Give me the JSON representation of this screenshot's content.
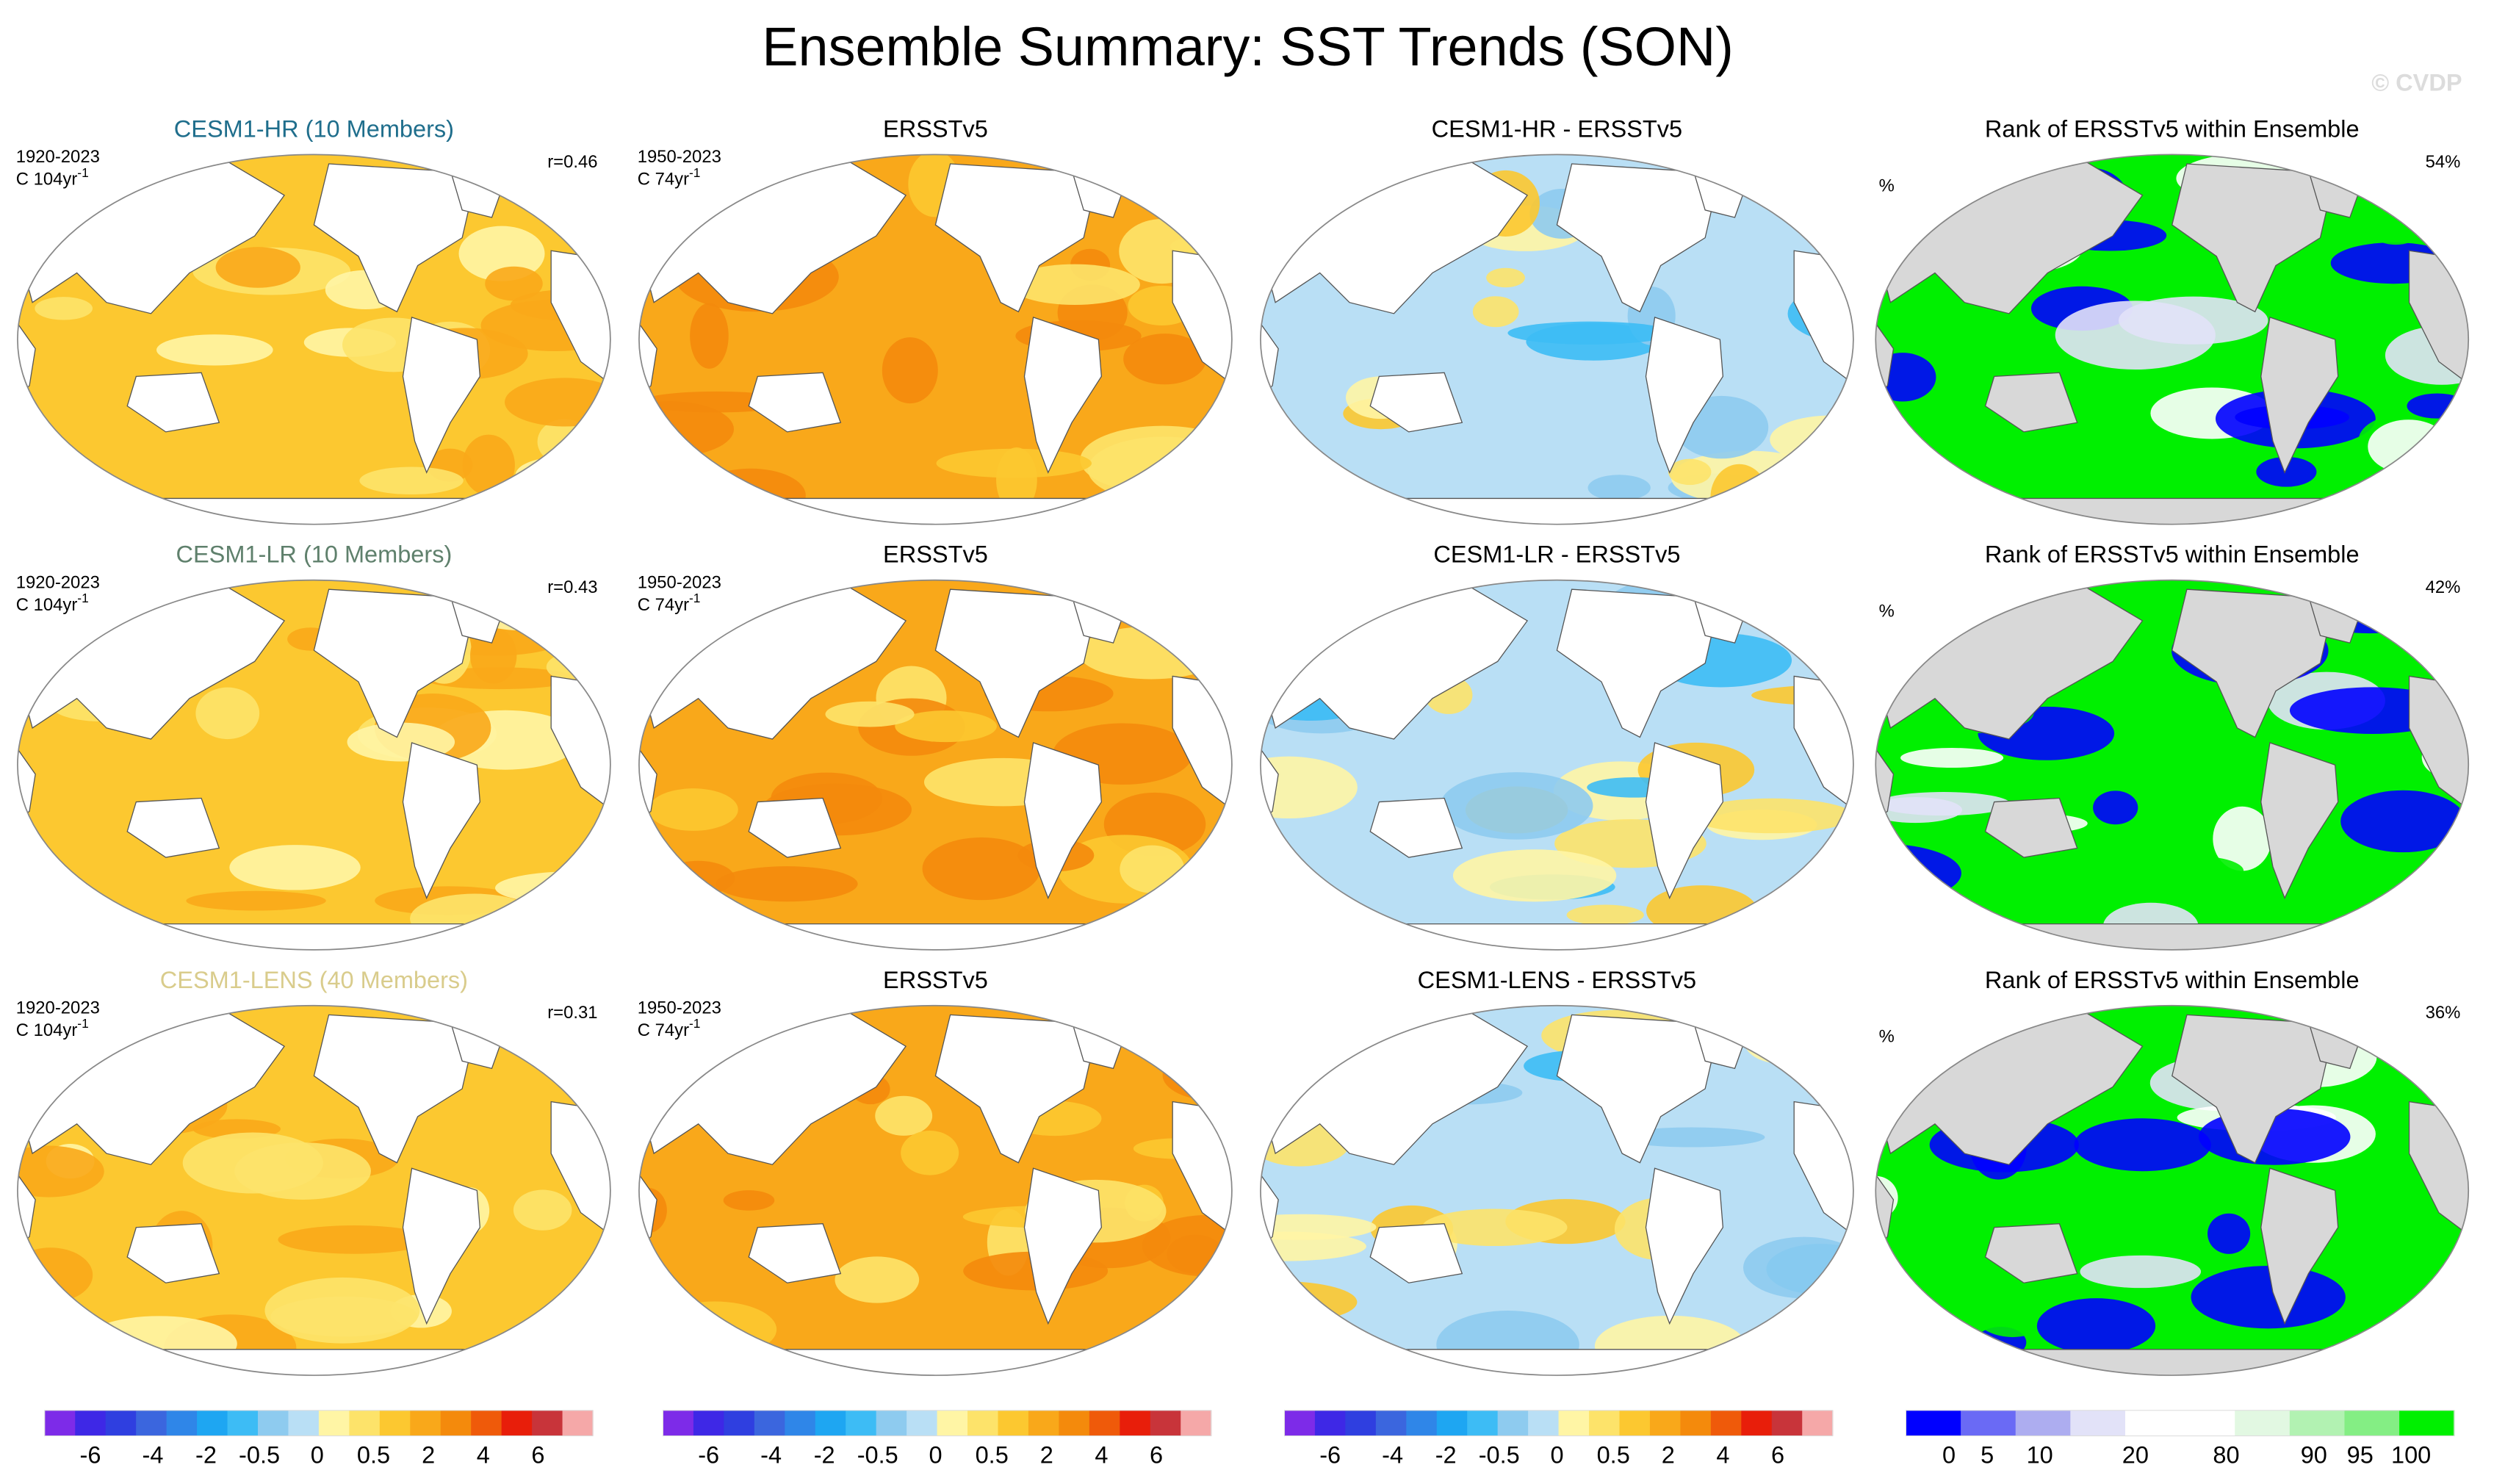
{
  "title": "Ensemble Summary: SST Trends (SON)",
  "watermark": "© CVDP",
  "rows": [
    {
      "model": {
        "title": "CESM1-HR (10 Members)",
        "title_color": "#1f6e8c",
        "period": "1920-2023",
        "units": "C 104yr",
        "units_sup": "-1",
        "corr": "r=0.46"
      },
      "obs": {
        "title": "ERSSTv5",
        "period": "1950-2023",
        "units": "C 74yr",
        "units_sup": "-1"
      },
      "diff": {
        "title": "CESM1-HR - ERSSTv5"
      },
      "rank": {
        "title": "Rank of ERSSTv5 within Ensemble",
        "unit": "%",
        "pct": "54%"
      }
    },
    {
      "model": {
        "title": "CESM1-LR (10 Members)",
        "title_color": "#5f806c",
        "period": "1920-2023",
        "units": "C 104yr",
        "units_sup": "-1",
        "corr": "r=0.43"
      },
      "obs": {
        "title": "ERSSTv5",
        "period": "1950-2023",
        "units": "C 74yr",
        "units_sup": "-1"
      },
      "diff": {
        "title": "CESM1-LR - ERSSTv5"
      },
      "rank": {
        "title": "Rank of ERSSTv5 within Ensemble",
        "unit": "%",
        "pct": "42%"
      }
    },
    {
      "model": {
        "title": "CESM1-LENS (40 Members)",
        "title_color": "#d9cc8c",
        "period": "1920-2023",
        "units": "C 104yr",
        "units_sup": "-1",
        "corr": "r=0.31"
      },
      "obs": {
        "title": "ERSSTv5",
        "period": "1950-2023",
        "units": "C 74yr",
        "units_sup": "-1"
      },
      "diff": {
        "title": "CESM1-LENS - ERSSTv5"
      },
      "rank": {
        "title": "Rank of ERSSTv5 within Ensemble",
        "unit": "%",
        "pct": "36%"
      }
    }
  ],
  "colorbars": {
    "trend": {
      "colors": [
        "#7d2be8",
        "#3e28e6",
        "#2f3fe0",
        "#3b66de",
        "#2f86e8",
        "#1ea6f2",
        "#3dbcf5",
        "#8ecbef",
        "#b9dff5",
        "#fff5a5",
        "#fde36a",
        "#fcc830",
        "#f9a81a",
        "#f48a0c",
        "#ef5a0a",
        "#e81e0a",
        "#c8343a",
        "#f5a8a8"
      ],
      "labels": [
        "-6",
        "-4",
        "-2",
        "-0.5",
        "0",
        "0.5",
        "2",
        "4",
        "6"
      ]
    },
    "rank": {
      "colors": [
        "#0000ff",
        "#6a6af5",
        "#adadf0",
        "#e2e2f8",
        "#ffffff",
        "#ffffff",
        "#e2f8e2",
        "#b2f2b2",
        "#84ee84",
        "#00f000"
      ],
      "labels": [
        "0",
        "5",
        "10",
        "20",
        "80",
        "90",
        "95",
        "100"
      ]
    }
  }
}
